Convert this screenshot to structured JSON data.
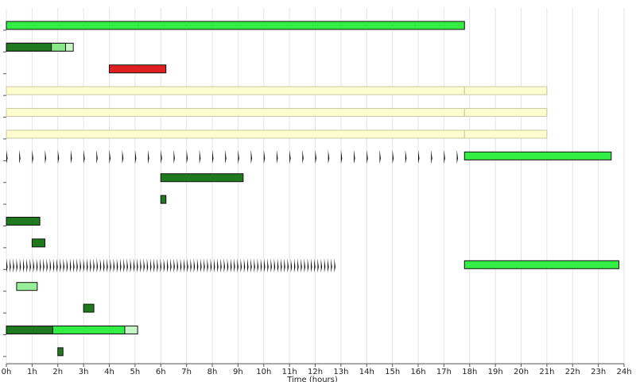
{
  "chart_data": {
    "type": "gantt",
    "x_label": "Time (hours)",
    "xlim": [
      0,
      24
    ],
    "xticks": [
      {
        "value": 0,
        "label": "0h"
      },
      {
        "value": 1,
        "label": "1h"
      },
      {
        "value": 2,
        "label": "2h"
      },
      {
        "value": 3,
        "label": "3h"
      },
      {
        "value": 4,
        "label": "4h"
      },
      {
        "value": 5,
        "label": "5h"
      },
      {
        "value": 6,
        "label": "6h"
      },
      {
        "value": 7,
        "label": "7h"
      },
      {
        "value": 8,
        "label": "8h"
      },
      {
        "value": 9,
        "label": "9h"
      },
      {
        "value": 10,
        "label": "10h"
      },
      {
        "value": 11,
        "label": "11h"
      },
      {
        "value": 12,
        "label": "12h"
      },
      {
        "value": 13,
        "label": "13h"
      },
      {
        "value": 14,
        "label": "14h"
      },
      {
        "value": 15,
        "label": "15h"
      },
      {
        "value": 16,
        "label": "16h"
      },
      {
        "value": 17,
        "label": "17h"
      },
      {
        "value": 18,
        "label": "18h"
      },
      {
        "value": 19,
        "label": "19h"
      },
      {
        "value": 20,
        "label": "20h"
      },
      {
        "value": 21,
        "label": "21h"
      },
      {
        "value": 22,
        "label": "22h"
      },
      {
        "value": 23,
        "label": "23h"
      },
      {
        "value": 24,
        "label": "24h"
      }
    ],
    "rows": 16,
    "grid": true,
    "bars": [
      {
        "row": 0,
        "start": 0,
        "end": 17.8,
        "color": "#33ee44"
      },
      {
        "row": 1,
        "start": 0,
        "end": 2.6,
        "color": "#c8f5c8"
      },
      {
        "row": 1,
        "start": 0,
        "end": 2.3,
        "color": "#88e888"
      },
      {
        "row": 1,
        "start": 0,
        "end": 1.75,
        "color": "#1f7a1f"
      },
      {
        "row": 2,
        "start": 4,
        "end": 6.2,
        "color": "#e02020"
      },
      {
        "row": 3,
        "start": 0,
        "end": 17.8,
        "color": "#fdfdd0"
      },
      {
        "row": 3,
        "start": 17.8,
        "end": 21,
        "color": "#fdfdd0"
      },
      {
        "row": 4,
        "start": 0,
        "end": 17.8,
        "color": "#fdfdd0"
      },
      {
        "row": 4,
        "start": 17.8,
        "end": 21,
        "color": "#fdfdd0"
      },
      {
        "row": 5,
        "start": 0,
        "end": 17.8,
        "color": "#fdfdd0"
      },
      {
        "row": 5,
        "start": 17.8,
        "end": 21,
        "color": "#fdfdd0"
      },
      {
        "row": 6,
        "start": 17.8,
        "end": 23.5,
        "color": "#33ee44"
      },
      {
        "row": 7,
        "start": 6,
        "end": 9.2,
        "color": "#1f7a1f"
      },
      {
        "row": 8,
        "start": 6,
        "end": 6.2,
        "color": "#1f7a1f"
      },
      {
        "row": 9,
        "start": 0,
        "end": 1.3,
        "color": "#1f7a1f"
      },
      {
        "row": 10,
        "start": 1,
        "end": 1.5,
        "color": "#1f7a1f"
      },
      {
        "row": 11,
        "start": 17.8,
        "end": 23.8,
        "color": "#33ee44"
      },
      {
        "row": 12,
        "start": 0.4,
        "end": 1.2,
        "color": "#99ee99"
      },
      {
        "row": 13,
        "start": 3,
        "end": 3.4,
        "color": "#1f7a1f"
      },
      {
        "row": 14,
        "start": 0,
        "end": 5.1,
        "color": "#c8f5c8"
      },
      {
        "row": 14,
        "start": 1.8,
        "end": 4.6,
        "color": "#33ee44"
      },
      {
        "row": 14,
        "start": 0,
        "end": 1.8,
        "color": "#1f7a1f"
      },
      {
        "row": 15,
        "start": 2,
        "end": 2.2,
        "color": "#1f7a1f"
      }
    ],
    "pulses": [
      {
        "row": 6,
        "start": 0,
        "end": 17.6,
        "interval": 0.5,
        "color": "#111111"
      },
      {
        "row": 11,
        "start": 0,
        "end": 12.8,
        "interval": 0.13,
        "color": "#111111"
      }
    ]
  }
}
